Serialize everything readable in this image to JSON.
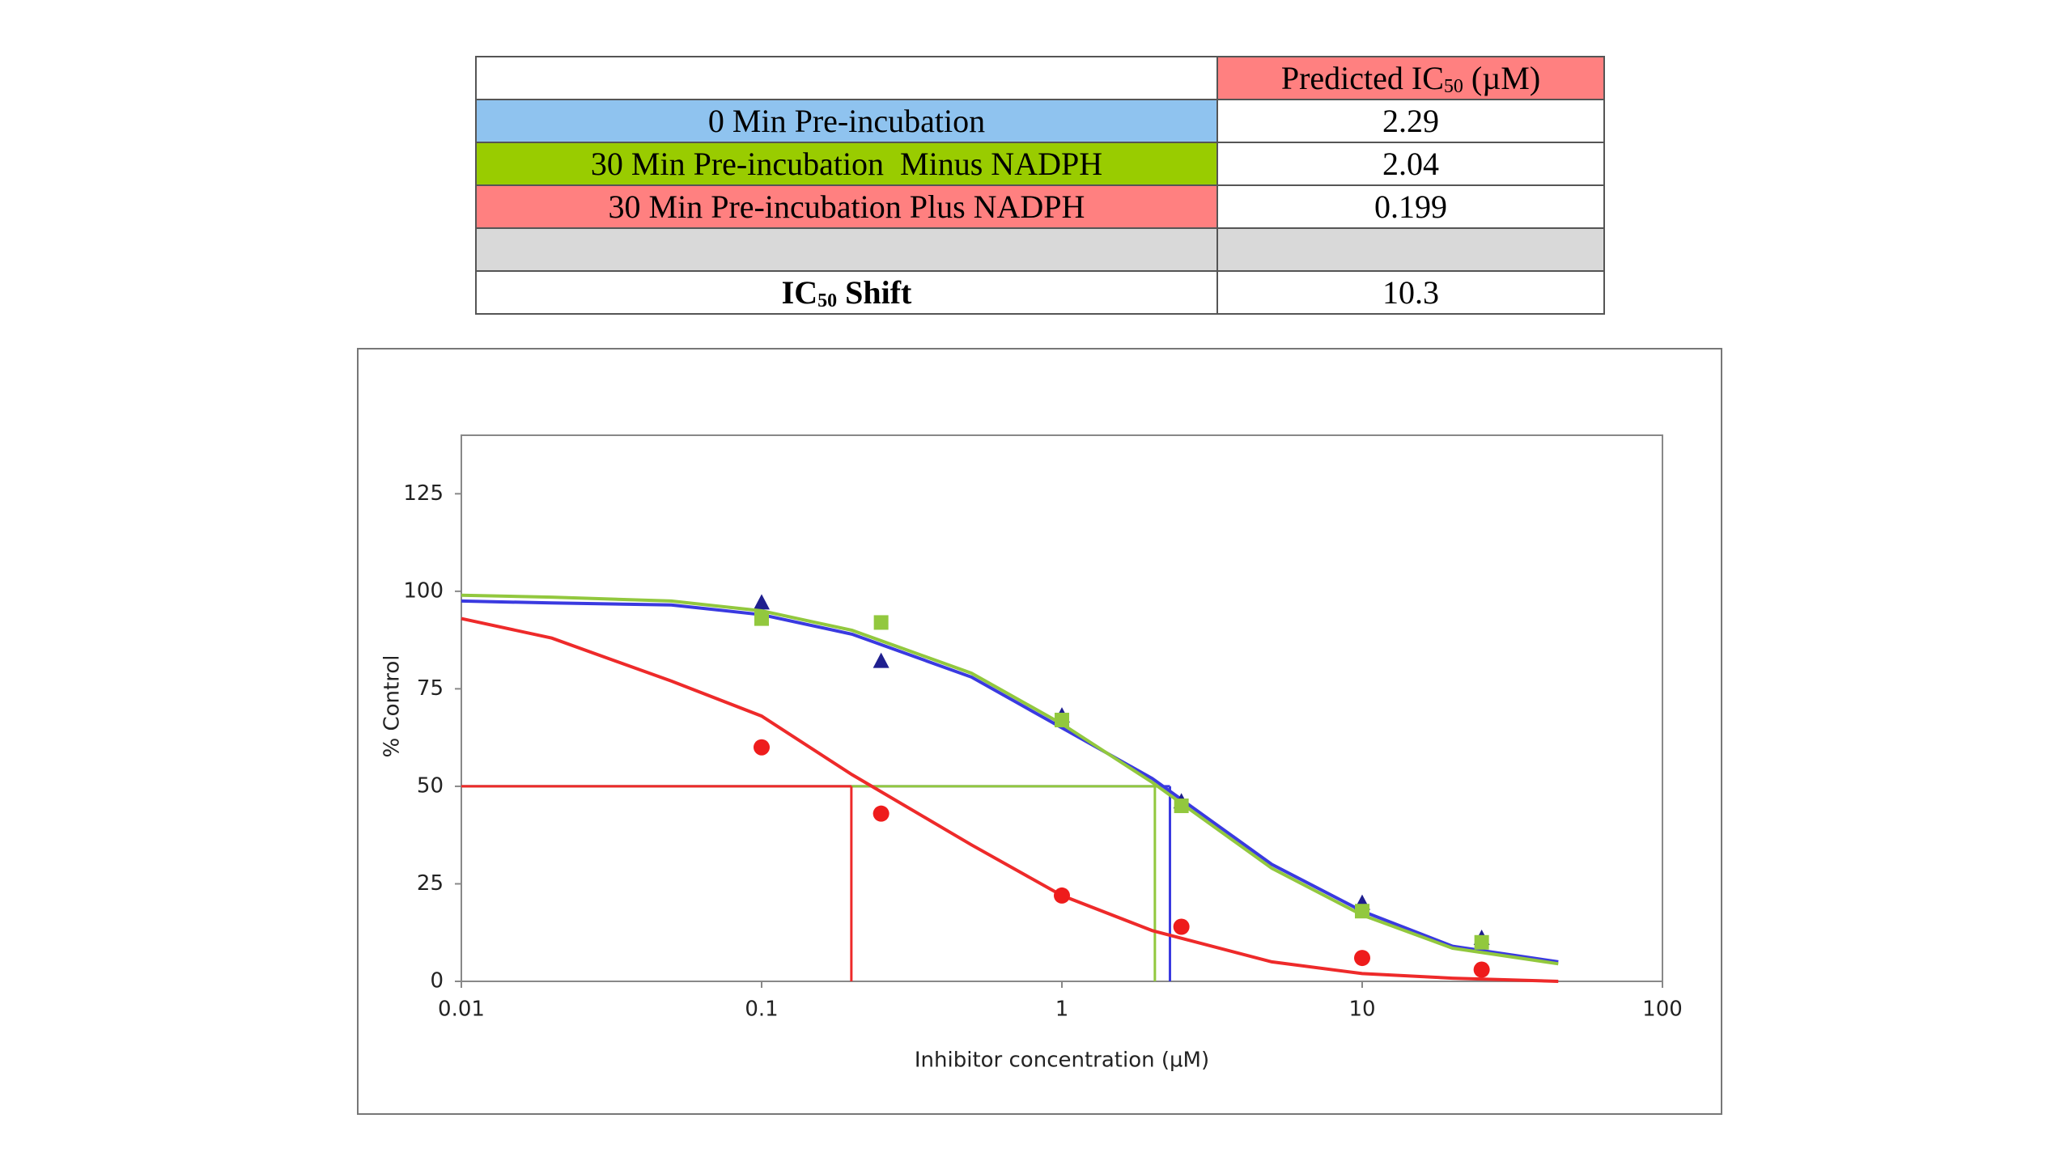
{
  "table": {
    "header": {
      "text": "Predicted IC",
      "sub": "50",
      "after": " (µM)",
      "color": "#ff8080"
    },
    "rows": [
      {
        "label": "0 Min Pre-incubation",
        "value": "2.29",
        "color": "#8fc3ef"
      },
      {
        "label": "30 Min Pre-incubation  Minus NADPH",
        "value": "2.04",
        "color": "#99cc00"
      },
      {
        "label": "30 Min Pre-incubation Plus NADPH",
        "value": "0.199",
        "color": "#ff8080"
      }
    ],
    "shift": {
      "text": "IC",
      "sub": "50",
      "after": " Shift",
      "value": "10.3"
    }
  },
  "chart_data": {
    "type": "scatter",
    "xlabel": "Inhibitor concentration (µM)",
    "ylabel": "% Control",
    "xscale": "log",
    "xlim": [
      0.01,
      100
    ],
    "xticks": [
      0.01,
      0.1,
      1,
      10,
      100
    ],
    "ylim": [
      0,
      140
    ],
    "yticks": [
      0,
      25,
      50,
      75,
      100,
      125
    ],
    "grid": false,
    "ic50_level": 50,
    "series": [
      {
        "color": "#1f1f8f",
        "line_color": "#3a3ae0",
        "marker": "triangle",
        "ic50": 2.29,
        "x": [
          0.1,
          0.25,
          1,
          2.5,
          10,
          25
        ],
        "values": [
          97,
          82,
          68,
          46,
          20,
          11
        ],
        "fit_x": [
          0.01,
          0.02,
          0.05,
          0.1,
          0.2,
          0.5,
          1,
          2,
          5,
          10,
          20,
          45
        ],
        "fit_values": [
          97.5,
          97,
          96.5,
          94,
          89,
          78,
          65,
          52,
          30,
          18,
          9,
          5
        ]
      },
      {
        "color": "#92c83e",
        "line_color": "#92c83e",
        "marker": "square",
        "ic50": 2.04,
        "x": [
          0.1,
          0.25,
          1,
          2.5,
          10,
          25
        ],
        "values": [
          93,
          92,
          67,
          45,
          18,
          10
        ],
        "fit_x": [
          0.01,
          0.02,
          0.05,
          0.1,
          0.2,
          0.5,
          1,
          2,
          5,
          10,
          20,
          45
        ],
        "fit_values": [
          99,
          98.5,
          97.5,
          95,
          90,
          79,
          66,
          51,
          29,
          17,
          8.5,
          4.5
        ]
      },
      {
        "color": "#ee1c1c",
        "line_color": "#ee2a2a",
        "marker": "circle",
        "ic50": 0.199,
        "x": [
          0.1,
          0.25,
          1,
          2.5,
          10,
          25
        ],
        "values": [
          60,
          43,
          22,
          14,
          6,
          3
        ],
        "fit_x": [
          0.01,
          0.02,
          0.05,
          0.1,
          0.2,
          0.5,
          1,
          2,
          5,
          10,
          20,
          45
        ],
        "fit_values": [
          93,
          88,
          77,
          68,
          53,
          35,
          22,
          13,
          5,
          2,
          0.8,
          0
        ]
      }
    ]
  }
}
